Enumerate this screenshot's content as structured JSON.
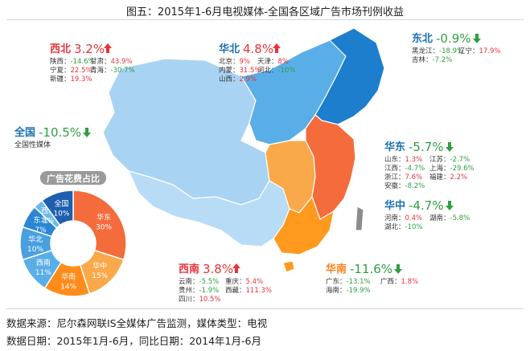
{
  "title": "图五：2015年1-6月电视媒体-全国各区域广告市场刊例收益",
  "source_line": "数据来源：尼尔森网联IS全媒体广告监测，媒体类型：电视",
  "date_line": "数据日期：2015年1月-6月，同比日期：2014年1月-6月",
  "colors": {
    "up": "#e8323a",
    "down": "#2f9e41",
    "region_name": "#1a6fb3",
    "south_name": "#ff7f1a",
    "southwest_name": "#e8323a",
    "map_northwest": "#a9d3f2",
    "map_north": "#5aaee8",
    "map_northeast": "#1d7ecd",
    "map_east": "#f46b3c",
    "map_central": "#f9a94a",
    "map_south": "#ff9a1f",
    "map_southwest": "#b8dcf6"
  },
  "chart_data": [
    {
      "type": "table",
      "title": "",
      "regions": [
        {
          "name": "西北",
          "change": "3.2%",
          "direction": "up",
          "provinces": [
            {
              "name": "陕西",
              "value": "-14.6%"
            },
            {
              "name": "甘肃",
              "value": "43.9%"
            },
            {
              "name": "宁夏",
              "value": "22.5%"
            },
            {
              "name": "青海",
              "value": "-30.7%"
            },
            {
              "name": "新疆",
              "value": "19.3%"
            }
          ]
        },
        {
          "name": "华北",
          "change": "4.8%",
          "direction": "up",
          "provinces": [
            {
              "name": "北京",
              "value": "9%"
            },
            {
              "name": "天津",
              "value": "8%"
            },
            {
              "name": "内蒙",
              "value": "31.5%"
            },
            {
              "name": "河北",
              "value": "-10%"
            },
            {
              "name": "山西",
              "value": "2.9%"
            }
          ]
        },
        {
          "name": "东北",
          "change": "-0.9%",
          "direction": "down",
          "provinces": [
            {
              "name": "黑龙江",
              "value": "-18.9%"
            },
            {
              "name": "辽宁",
              "value": "17.9%"
            },
            {
              "name": "吉林",
              "value": "-7.2%"
            }
          ]
        },
        {
          "name": "全国",
          "change": "-10.5%",
          "direction": "down",
          "note": "全国性媒体",
          "provinces": []
        },
        {
          "name": "华东",
          "change": "-5.7%",
          "direction": "down",
          "provinces": [
            {
              "name": "山东",
              "value": "1.3%"
            },
            {
              "name": "江苏",
              "value": "-2.7%"
            },
            {
              "name": "江西",
              "value": "-4.7%"
            },
            {
              "name": "上海",
              "value": "-29.6%"
            },
            {
              "name": "浙江",
              "value": "7.6%"
            },
            {
              "name": "福建",
              "value": "2.2%"
            },
            {
              "name": "安徽",
              "value": "-8.2%"
            }
          ]
        },
        {
          "name": "华中",
          "change": "-4.7%",
          "direction": "down",
          "provinces": [
            {
              "name": "河南",
              "value": "0.4%"
            },
            {
              "name": "湖南",
              "value": "-5.8%"
            },
            {
              "name": "湖北",
              "value": "-10%"
            }
          ]
        },
        {
          "name": "西南",
          "change": "3.8%",
          "direction": "up",
          "provinces": [
            {
              "name": "云南",
              "value": "-5.5%"
            },
            {
              "name": "重庆",
              "value": "5.4%"
            },
            {
              "name": "贵州",
              "value": "-1.9%"
            },
            {
              "name": "西藏",
              "value": "111.3%"
            },
            {
              "name": "四川",
              "value": "10.5%"
            }
          ]
        },
        {
          "name": "华南",
          "change": "-11.6%",
          "direction": "down",
          "provinces": [
            {
              "name": "广东",
              "value": "-13.1%"
            },
            {
              "name": "广西",
              "value": "1.8%"
            },
            {
              "name": "海南",
              "value": "-19.9%"
            }
          ]
        }
      ]
    },
    {
      "type": "pie",
      "title": "广告花费占比",
      "slices": [
        {
          "label": "华东",
          "value": 30,
          "display": "30%",
          "color": "#f46b3c"
        },
        {
          "label": "华中",
          "value": 15,
          "display": "15%",
          "color": "#f9a94a"
        },
        {
          "label": "华南",
          "value": 14,
          "display": "14%",
          "color": "#ff8c1a"
        },
        {
          "label": "西南",
          "value": 11,
          "display": "11%",
          "color": "#5aaee8"
        },
        {
          "label": "华北",
          "value": 10,
          "display": "10%",
          "color": "#4a9fe0"
        },
        {
          "label": "东北",
          "value": 7,
          "display": "7%",
          "color": "#2a86d4"
        },
        {
          "label": "西北",
          "value": 3,
          "display": "3%",
          "color": "#6cb8ec"
        },
        {
          "label": "全国",
          "value": 10,
          "display": "10%",
          "color": "#1f5fae"
        }
      ]
    }
  ]
}
